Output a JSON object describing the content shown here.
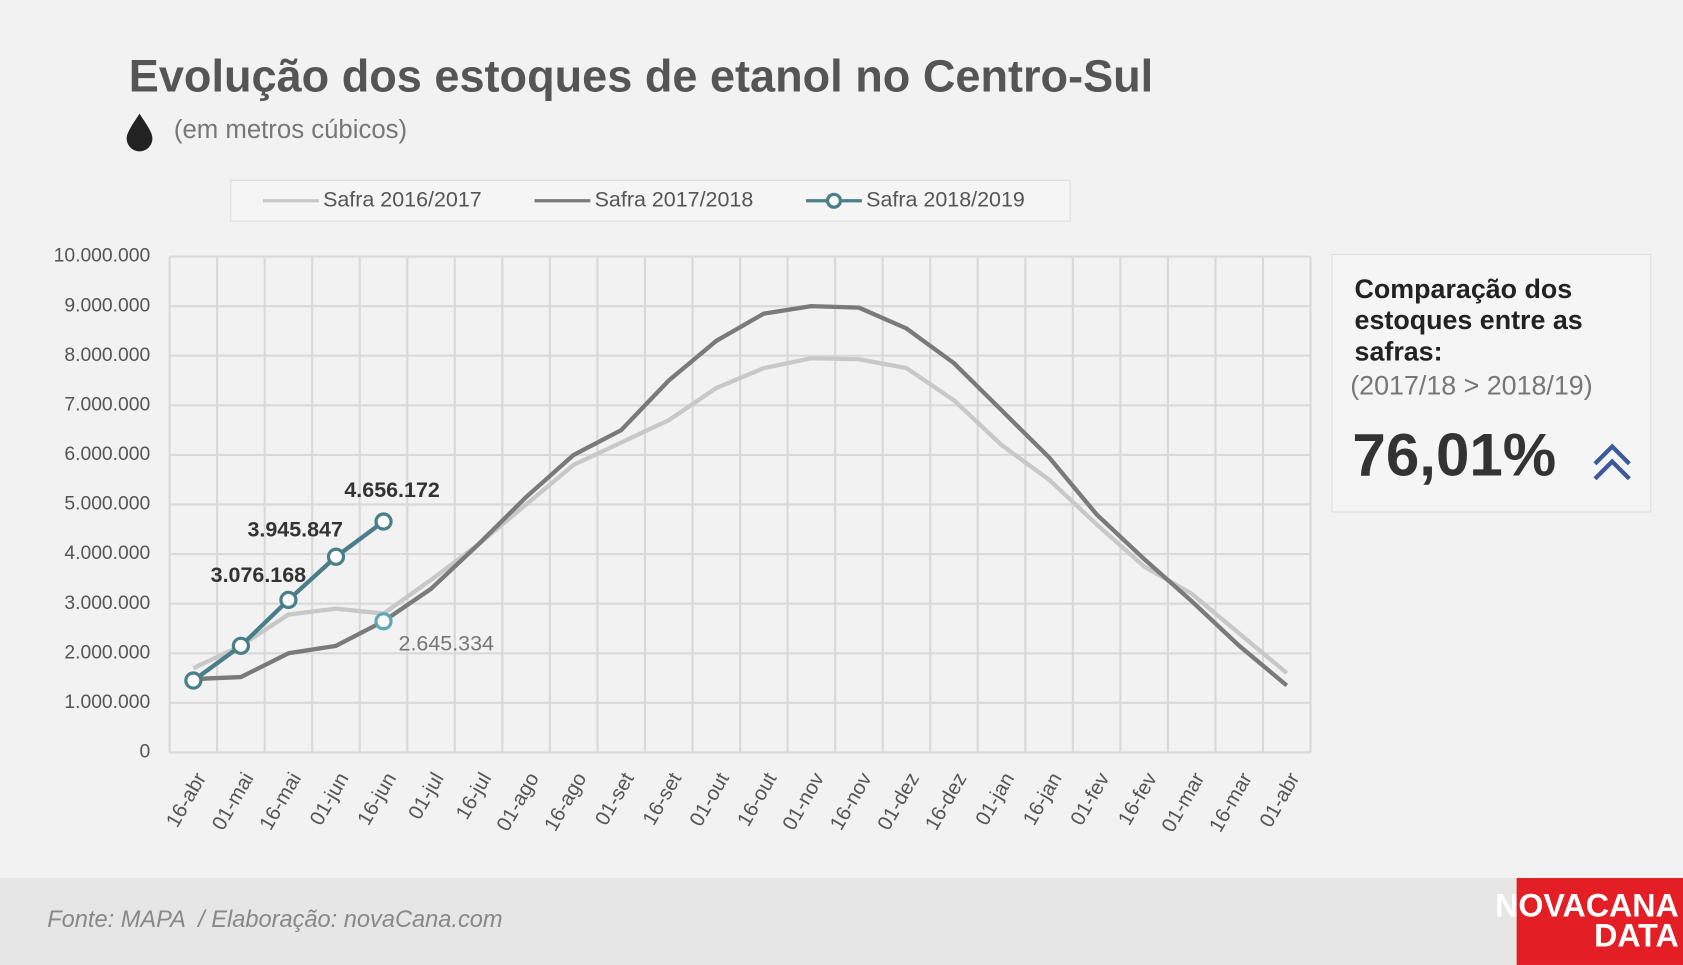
{
  "chart_data": {
    "type": "line",
    "title": "Evolução dos estoques de etanol no Centro-Sul",
    "subtitle": "(em metros cúbicos)",
    "categories": [
      "16-abr",
      "01-mai",
      "16-mai",
      "01-jun",
      "16-jun",
      "01-jul",
      "16-jul",
      "01-ago",
      "16-ago",
      "01-set",
      "16-set",
      "01-out",
      "16-out",
      "01-nov",
      "16-nov",
      "01-dez",
      "16-dez",
      "01-jan",
      "16-jan",
      "01-fev",
      "16-fev",
      "01-mar",
      "16-mar",
      "01-abr"
    ],
    "series": [
      {
        "name": "Safra 2016/2017",
        "color": "#c8c8c8",
        "values": [
          1700000,
          2150000,
          2780000,
          2900000,
          2800000,
          3480000,
          4200000,
          5000000,
          5800000,
          6250000,
          6700000,
          7350000,
          7750000,
          7950000,
          7930000,
          7750000,
          7100000,
          6200000,
          5500000,
          4600000,
          3750000,
          3200000,
          2400000,
          1600000
        ]
      },
      {
        "name": "Safra 2017/2018",
        "color": "#7a7a7a",
        "marker_color": "#5fa8b3",
        "values": [
          1480000,
          1520000,
          2000000,
          2150000,
          2645334,
          3300000,
          4200000,
          5150000,
          6000000,
          6500000,
          7500000,
          8300000,
          8850000,
          9000000,
          8970000,
          8550000,
          7850000,
          6900000,
          5950000,
          4800000,
          3900000,
          3050000,
          2150000,
          1350000
        ],
        "value_labels": [
          null,
          null,
          null,
          null,
          "2.645.334",
          null,
          null,
          null,
          null,
          null,
          null,
          null,
          null,
          null,
          null,
          null,
          null,
          null,
          null,
          null,
          null,
          null,
          null,
          null
        ]
      },
      {
        "name": "Safra 2018/2019",
        "color": "#4a7f8a",
        "marker_color": "#4a7f8a",
        "markers": true,
        "values": [
          1450000,
          2150000,
          3076168,
          3945847,
          4656172,
          null,
          null,
          null,
          null,
          null,
          null,
          null,
          null,
          null,
          null,
          null,
          null,
          null,
          null,
          null,
          null,
          null,
          null,
          null
        ],
        "value_labels": [
          null,
          null,
          "3.076.168",
          "3.945.847",
          "4.656.172",
          null,
          null,
          null,
          null,
          null,
          null,
          null,
          null,
          null,
          null,
          null,
          null,
          null,
          null,
          null,
          null,
          null,
          null,
          null
        ]
      }
    ],
    "ylim": [
      0,
      10000000
    ],
    "yticks": [
      0,
      {
        "value": 1000000,
        "label": "1.000.000"
      },
      {
        "value": 2000000,
        "label": "2.000.000"
      },
      {
        "value": 3000000,
        "label": "3.000.000"
      },
      {
        "value": 4000000,
        "label": "4.000.000"
      },
      {
        "value": 5000000,
        "label": "5.000.000"
      },
      {
        "value": 6000000,
        "label": "6.000.000"
      },
      {
        "value": 7000000,
        "label": "7.000.000"
      },
      {
        "value": 8000000,
        "label": "8.000.000"
      },
      {
        "value": 9000000,
        "label": "9.000.000"
      },
      {
        "value": 10000000,
        "label": "10.000.000"
      }
    ],
    "grid": true,
    "legend": "top"
  },
  "panel": {
    "title_lines": [
      "Comparação dos",
      "estoques entre as",
      "safras:"
    ],
    "note": "(2017/18 > 2018/19)",
    "value": "76,01%"
  },
  "footer": {
    "source": "Fonte: MAPA  / Elaboração: novaCana.com",
    "logo": [
      "NOVACANA",
      "DATA"
    ]
  }
}
